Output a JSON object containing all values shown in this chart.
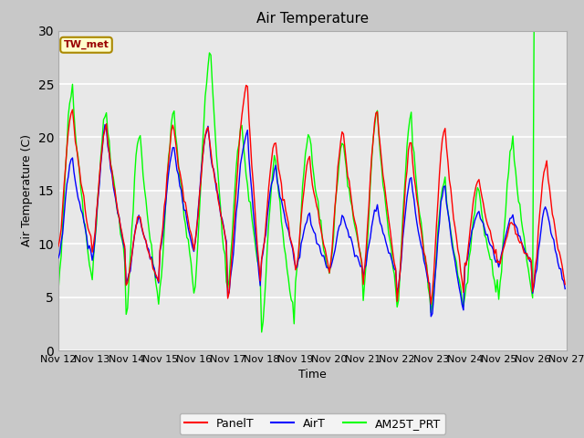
{
  "title": "Air Temperature",
  "ylabel": "Air Temperature (C)",
  "xlabel": "Time",
  "xlim_start": 0,
  "xlim_end": 360,
  "ylim": [
    0,
    30
  ],
  "yticks": [
    0,
    5,
    10,
    15,
    20,
    25,
    30
  ],
  "xtick_labels": [
    "Nov 12",
    "Nov 13",
    "Nov 14",
    "Nov 15",
    "Nov 16",
    "Nov 17",
    "Nov 18",
    "Nov 19",
    "Nov 20",
    "Nov 21",
    "Nov 22",
    "Nov 23",
    "Nov 24",
    "Nov 25",
    "Nov 26",
    "Nov 27"
  ],
  "xtick_positions": [
    0,
    24,
    48,
    72,
    96,
    120,
    144,
    168,
    192,
    216,
    240,
    264,
    288,
    312,
    336,
    360
  ],
  "annotation_text": "TW_met",
  "annotation_color": "#990000",
  "annotation_bg": "#ffffcc",
  "annotation_border": "#aa8800",
  "fig_bg": "#c8c8c8",
  "plot_bg": "#e8e8e8",
  "grid_color": "white",
  "line_width": 1.0,
  "title_fontsize": 11,
  "axis_fontsize": 9,
  "tick_fontsize": 8,
  "legend_fontsize": 9,
  "peak_heights_red": [
    22.5,
    21.0,
    12.5,
    21.0,
    21.0,
    25.0,
    19.5,
    18.0,
    20.5,
    22.5,
    19.5,
    21.0,
    16.0,
    12.0,
    17.5
  ],
  "trough_heights_red": [
    9.5,
    9.0,
    6.0,
    9.5,
    9.5,
    5.0,
    8.5,
    7.5,
    7.5,
    6.5,
    5.0,
    4.5,
    8.0,
    8.0,
    5.5
  ],
  "peak_hours_red": [
    10,
    10,
    10,
    10,
    10,
    14,
    10,
    10,
    10,
    10,
    10,
    10,
    10,
    10,
    10
  ],
  "peak_heights_blue": [
    18.0,
    21.0,
    12.5,
    19.0,
    21.0,
    20.5,
    17.0,
    12.5,
    12.5,
    13.5,
    16.0,
    15.5,
    13.0,
    12.5,
    13.5
  ],
  "trough_heights_blue": [
    8.5,
    8.5,
    6.0,
    9.5,
    9.5,
    5.0,
    8.5,
    7.5,
    7.5,
    7.0,
    5.5,
    3.0,
    8.0,
    8.0,
    5.5
  ],
  "peak_hours_blue": [
    10,
    10,
    10,
    10,
    10,
    14,
    10,
    10,
    10,
    10,
    10,
    10,
    10,
    10,
    10
  ],
  "peak_heights_green": [
    24.5,
    22.5,
    20.5,
    22.5,
    28.0,
    21.0,
    18.0,
    20.5,
    19.5,
    22.5,
    22.0,
    16.0,
    15.0,
    19.5,
    999
  ],
  "trough_heights_green": [
    6.0,
    7.5,
    3.5,
    6.0,
    5.0,
    6.0,
    2.0,
    6.5,
    7.5,
    5.0,
    4.0,
    3.5,
    5.0,
    5.0,
    5.0
  ],
  "peak_hours_green": [
    10,
    10,
    10,
    10,
    12,
    10,
    10,
    10,
    10,
    10,
    10,
    10,
    10,
    10,
    10
  ]
}
